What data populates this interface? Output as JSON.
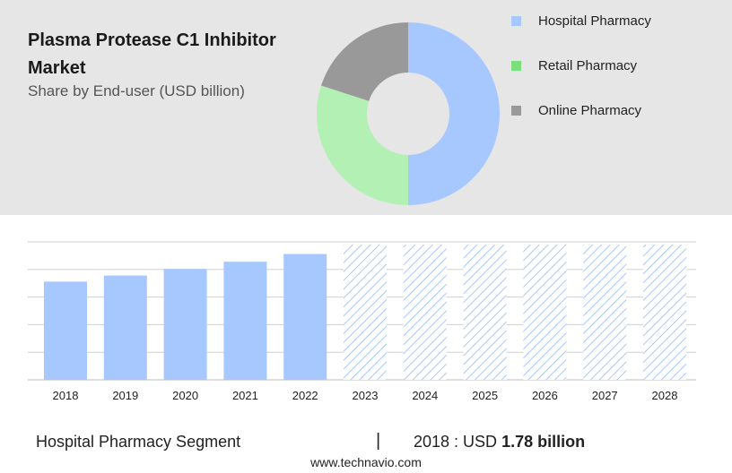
{
  "title": "Plasma Protease C1 Inhibitor Market",
  "subtitle": "Share by End-user (USD billion)",
  "colors": {
    "hospital": "#a6c8ff",
    "retail": "#b3f0b3",
    "online": "#999999",
    "retail_legend": "#7be07b",
    "bar": "#a6c8ff",
    "forecast_hatch": "#a6c8ff",
    "grid": "#d0d0d0",
    "panel": "#e6e6e6"
  },
  "legend": [
    {
      "label": "Hospital Pharmacy",
      "color": "#a6c8ff"
    },
    {
      "label": "Retail Pharmacy",
      "color": "#7be07b"
    },
    {
      "label": "Online Pharmacy",
      "color": "#999999"
    }
  ],
  "chart_data": [
    {
      "type": "pie",
      "title": "",
      "labels": [
        "Hospital Pharmacy",
        "Retail Pharmacy",
        "Online Pharmacy"
      ],
      "values": [
        50,
        30,
        20
      ],
      "donut": true
    },
    {
      "type": "bar",
      "title": "",
      "categories": [
        "2018",
        "2019",
        "2020",
        "2021",
        "2022",
        "2023",
        "2024",
        "2025",
        "2026",
        "2027",
        "2028"
      ],
      "series": [
        {
          "values": [
            1.78,
            1.89,
            2.01,
            2.14,
            2.28,
            2.45,
            2.45,
            2.45,
            2.45,
            2.45,
            2.45
          ]
        }
      ],
      "forecast_from": "2023",
      "ylim": [
        0,
        2.5
      ],
      "grid": true,
      "xlabel": "",
      "ylabel": ""
    }
  ],
  "footer": {
    "segment": "Hospital Pharmacy Segment",
    "separator": "|",
    "year_prefix": "2018 : USD",
    "value": "1.78 billion"
  },
  "source": "www.technavio.com"
}
